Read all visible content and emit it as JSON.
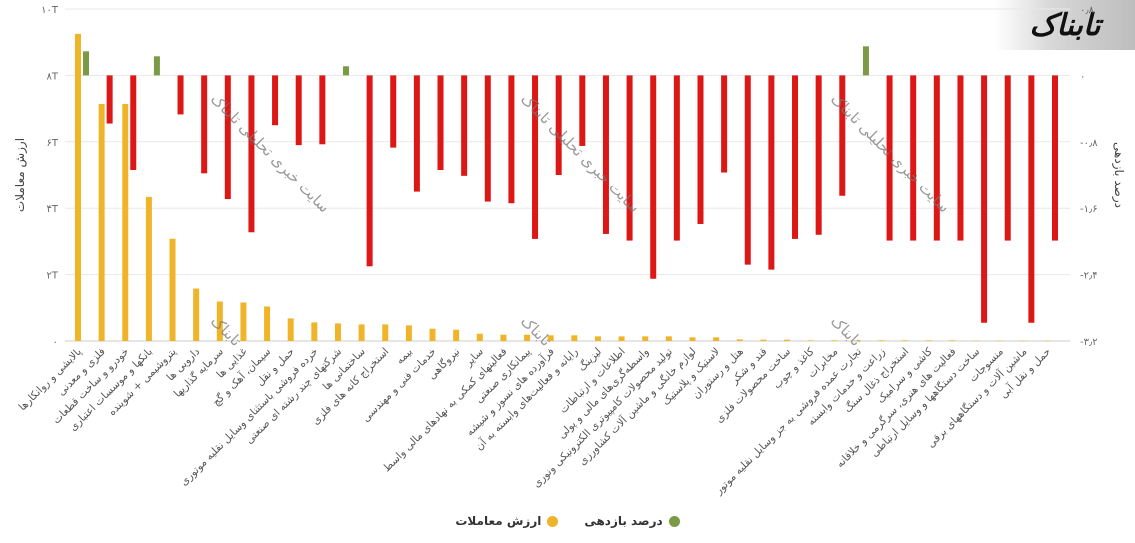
{
  "chart_data": {
    "type": "bar",
    "title": "",
    "categories": [
      "پالایشی و روانکارها",
      "فلزی و معدنی",
      "خودرو و ساخت قطعات",
      "بانکها و موسسات اعتباری",
      "پتروشیمی + شوینده",
      "دارویی ها",
      "سرمایه گذاریها",
      "غذایی ها",
      "سیمان، آهک و گچ",
      "حمل و نقل",
      "خرده فروشی باستثنای وسایل نقلیه موتوری",
      "شرکتهای چند رشته ای صنعتی",
      "ساختمانی ها",
      "استخراج کانه های فلزی",
      "بیمه",
      "خدمات فنی و مهندسی",
      "نیروگاهی",
      "سایر",
      "فعالیتهای کمکی به نهادهای مالی واسط",
      "پیمانکاری صنعتی",
      "فرآورده های نسوز و شیشه",
      "رایانه و فعالیت‌های وابسته به آن",
      "لیزینگ",
      "اطلاعات و ارتباطات",
      "واسطه‌گری‌های مالی و پولی",
      "تولید محصولات کامپیوتری الکترونیکی ونوری",
      "لوازم خانگی و ماشین آلات کشاورزی",
      "لاستیک و پلاستیک",
      "هتل و رستوران",
      "قند و شکر",
      "ساخت محصولات فلزی",
      "کاغذ و چوب",
      "مخابرات",
      "تجارت عمده فروشی به جز وسایل نقلیه موتور",
      "زراعت و خدمات وابسته",
      "استخراج ذغال سنگ",
      "کاشی و سرامیک",
      "فعالیت های هنری، سرگرمی و خلاقانه",
      "ساخت دستگاهها و وسایل ارتباطی",
      "منسوجات",
      "ماشین آلات و دستگاههای برقی",
      "حمل و نقل آبی"
    ],
    "series": [
      {
        "name": "ارزش معاملات",
        "axis": "left",
        "unit": "T",
        "color": "#f0b429",
        "values": [
          9.25,
          7.14,
          7.14,
          4.34,
          3.08,
          1.58,
          1.19,
          1.16,
          1.04,
          0.68,
          0.56,
          0.53,
          0.5,
          0.5,
          0.47,
          0.37,
          0.34,
          0.22,
          0.19,
          0.19,
          0.17,
          0.17,
          0.14,
          0.14,
          0.14,
          0.14,
          0.11,
          0.11,
          0.05,
          0.04,
          0.04,
          0.02,
          0.02,
          0.02,
          0.02,
          0.02,
          0.02,
          0.02,
          0.01,
          0.01,
          0.01,
          0.01
        ]
      },
      {
        "name": "درصد بازدهی",
        "axis": "right",
        "unit": "%",
        "color": "#7a9a45",
        "negative_color": "#dd1616",
        "values": [
          0.29,
          -0.58,
          -1.14,
          0.23,
          -0.47,
          -1.18,
          -1.49,
          -1.89,
          -0.6,
          -0.84,
          -0.83,
          0.11,
          -2.3,
          -0.87,
          -1.4,
          -1.14,
          -1.21,
          -1.52,
          -1.54,
          -1.97,
          -1.2,
          -0.85,
          -1.91,
          -1.99,
          -2.45,
          -1.99,
          -1.79,
          -1.17,
          -2.28,
          -2.34,
          -1.97,
          -1.92,
          -1.45,
          0.35,
          -1.99,
          -1.99,
          -1.99,
          -1.99,
          -2.98,
          -1.99,
          -2.98,
          -1.99
        ]
      }
    ],
    "left_axis": {
      "label": "ارزش معاملات",
      "ylim": [
        0,
        10
      ],
      "ticks": [
        0,
        2,
        4,
        6,
        8,
        10
      ],
      "tick_labels": [
        "۰",
        "۲T",
        "۴T",
        "۶T",
        "۸T",
        "۱۰T"
      ]
    },
    "right_axis": {
      "label": "درصد بازدهی",
      "ylim": [
        -3.2,
        0.8
      ],
      "ticks": [
        0.8,
        0,
        -0.8,
        -1.6,
        -2.4,
        -3.2
      ],
      "tick_labels": [
        "۰٫۸",
        "۰",
        "-۰٫۸",
        "-۱٫۶",
        "-۲٫۴",
        "-۳٫۲"
      ]
    },
    "grid": true,
    "legend_position": "bottom",
    "legend": [
      {
        "label": "درصد بازدهی",
        "color": "#7a9a45"
      },
      {
        "label": "ارزش معاملات",
        "color": "#f0b429"
      }
    ]
  },
  "logo": {
    "text": "تابناک"
  },
  "watermark": {
    "text": "سایت خبری تحلیلی تابناک",
    "short": "تابناک"
  }
}
